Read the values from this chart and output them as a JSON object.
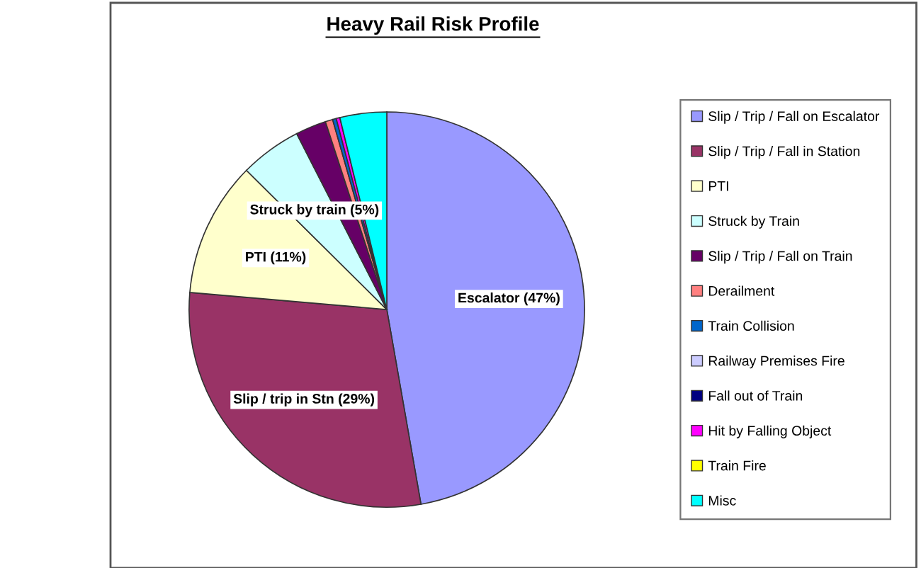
{
  "chart_data": {
    "type": "pie",
    "title": "Heavy Rail Risk Profile",
    "categories": [
      "Slip / Trip / Fall on Escalator",
      "Slip / Trip / Fall in Station",
      "PTI",
      "Struck by Train",
      "Slip / Trip / Fall on Train",
      "Derailment",
      "Train Collision",
      "Railway Premises Fire",
      "Fall out of Train",
      "Hit by Falling Object",
      "Train Fire",
      "Misc"
    ],
    "values": [
      47,
      29,
      11,
      5,
      2.5,
      0.6,
      0.3,
      null,
      null,
      0.3,
      null,
      3.8
    ],
    "colors": [
      "#9999ff",
      "#993366",
      "#ffffcc",
      "#ccffff",
      "#660066",
      "#ff8080",
      "#0066cc",
      "#ccccff",
      "#000080",
      "#ff00ff",
      "#ffff00",
      "#00ffff"
    ],
    "value_labels": [
      "Escalator (47%)",
      "Slip / trip in Stn (29%)",
      "PTI (11%)",
      "Struck by train (5%)",
      null,
      null,
      null,
      null,
      null,
      null,
      null,
      null
    ],
    "legend": "right"
  }
}
